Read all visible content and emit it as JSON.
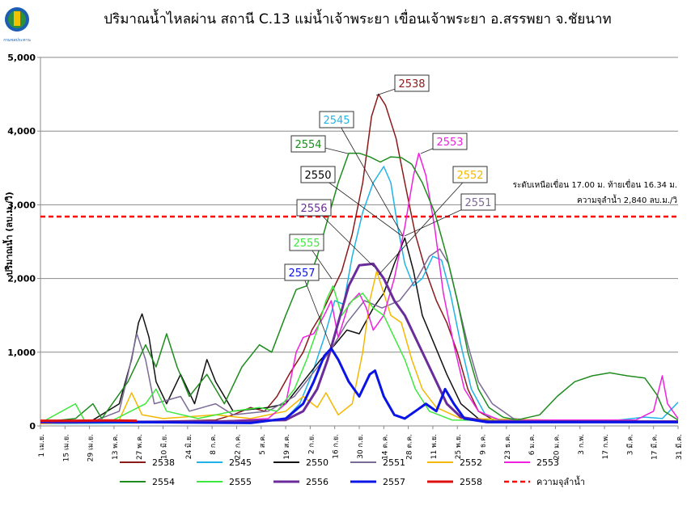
{
  "logo_text": "กรมชลประทาน",
  "chart_data": {
    "type": "line",
    "title": "ปริมาณน้ำไหลผ่าน สถานี C.13 แม่น้ำเจ้าพระยา เขื่อนเจ้าพระยา อ.สรรพยา จ.ชัยนาท",
    "ylabel": "ปริมาณน้ำ (ลบ.ม./วิ)",
    "xlabel": "",
    "ylim": [
      0,
      5000
    ],
    "yticks": [
      0,
      1000,
      2000,
      3000,
      4000,
      5000
    ],
    "ytick_labels": [
      "0",
      "1,000",
      "2,000",
      "3,000",
      "4,000",
      "5,000"
    ],
    "xlim_days": [
      0,
      364
    ],
    "xtick_labels": [
      "1 เม.ย.",
      "15 เม.ย.",
      "29 เม.ย.",
      "13 พ.ค.",
      "27 พ.ค.",
      "10 มิ.ย.",
      "24 มิ.ย.",
      "8 ก.ค.",
      "22 ก.ค.",
      "5 ส.ค.",
      "19 ส.ค.",
      "2 ก.ย.",
      "16 ก.ย.",
      "30 ก.ย.",
      "14 ต.ค.",
      "28 ต.ค.",
      "11 พ.ย.",
      "25 พ.ย.",
      "9 ธ.ค.",
      "23 ธ.ค.",
      "6 ม.ค.",
      "20 ม.ค.",
      "3 ก.พ.",
      "17 ก.พ.",
      "3 มี.ค.",
      "17 มี.ค.",
      "31 มี.ค."
    ],
    "xtick_interval_days": 14,
    "grid": true,
    "legend_placement": "bottom",
    "capacity": {
      "name": "ความจุลำน้ำ",
      "value": 2840,
      "color": "#FF0000"
    },
    "annotation": {
      "line1": "ระดับเหนือเขื่อน  17.00 ม. ท้ายเขื่อน 16.34 ม.",
      "line2": "ความจุลำน้ำ 2,840 ลบ.ม./วิ"
    },
    "series": [
      {
        "name": "2538",
        "color": "#8B1A1A",
        "width": 1.5,
        "points": [
          [
            0,
            50
          ],
          [
            60,
            60
          ],
          [
            100,
            80
          ],
          [
            110,
            150
          ],
          [
            120,
            250
          ],
          [
            128,
            200
          ],
          [
            135,
            400
          ],
          [
            142,
            700
          ],
          [
            150,
            1000
          ],
          [
            155,
            1300
          ],
          [
            160,
            1500
          ],
          [
            166,
            1800
          ],
          [
            172,
            2100
          ],
          [
            178,
            2600
          ],
          [
            184,
            3300
          ],
          [
            189,
            4200
          ],
          [
            193,
            4500
          ],
          [
            197,
            4350
          ],
          [
            203,
            3900
          ],
          [
            208,
            3300
          ],
          [
            214,
            2600
          ],
          [
            220,
            2100
          ],
          [
            226,
            1700
          ],
          [
            232,
            1400
          ],
          [
            238,
            1000
          ],
          [
            244,
            500
          ],
          [
            250,
            200
          ],
          [
            260,
            60
          ],
          [
            364,
            60
          ]
        ]
      },
      {
        "name": "2545",
        "color": "#1EB4E8",
        "width": 1.5,
        "points": [
          [
            0,
            30
          ],
          [
            120,
            50
          ],
          [
            140,
            100
          ],
          [
            148,
            300
          ],
          [
            155,
            700
          ],
          [
            162,
            1200
          ],
          [
            168,
            1700
          ],
          [
            173,
            1650
          ],
          [
            178,
            2300
          ],
          [
            184,
            2900
          ],
          [
            190,
            3300
          ],
          [
            196,
            3520
          ],
          [
            200,
            3300
          ],
          [
            204,
            2700
          ],
          [
            208,
            2200
          ],
          [
            213,
            1900
          ],
          [
            218,
            2000
          ],
          [
            224,
            2300
          ],
          [
            229,
            2250
          ],
          [
            234,
            1800
          ],
          [
            240,
            1100
          ],
          [
            246,
            500
          ],
          [
            254,
            150
          ],
          [
            265,
            60
          ],
          [
            330,
            80
          ],
          [
            345,
            120
          ],
          [
            355,
            100
          ],
          [
            364,
            320
          ]
        ]
      },
      {
        "name": "2550",
        "color": "#111111",
        "width": 1.5,
        "points": [
          [
            0,
            60
          ],
          [
            30,
            80
          ],
          [
            45,
            300
          ],
          [
            52,
            900
          ],
          [
            56,
            1400
          ],
          [
            58,
            1520
          ],
          [
            62,
            1200
          ],
          [
            66,
            600
          ],
          [
            72,
            300
          ],
          [
            80,
            700
          ],
          [
            88,
            300
          ],
          [
            95,
            900
          ],
          [
            100,
            600
          ],
          [
            110,
            200
          ],
          [
            130,
            250
          ],
          [
            140,
            300
          ],
          [
            150,
            600
          ],
          [
            160,
            900
          ],
          [
            168,
            1100
          ],
          [
            175,
            1300
          ],
          [
            182,
            1250
          ],
          [
            190,
            1600
          ],
          [
            196,
            1800
          ],
          [
            202,
            2200
          ],
          [
            208,
            2550
          ],
          [
            213,
            2100
          ],
          [
            218,
            1500
          ],
          [
            225,
            1100
          ],
          [
            232,
            700
          ],
          [
            240,
            300
          ],
          [
            250,
            100
          ],
          [
            260,
            60
          ],
          [
            364,
            60
          ]
        ]
      },
      {
        "name": "2551",
        "color": "#7B6A96",
        "width": 1.5,
        "points": [
          [
            0,
            40
          ],
          [
            30,
            60
          ],
          [
            45,
            200
          ],
          [
            50,
            700
          ],
          [
            55,
            1250
          ],
          [
            60,
            900
          ],
          [
            65,
            300
          ],
          [
            80,
            400
          ],
          [
            85,
            200
          ],
          [
            100,
            300
          ],
          [
            110,
            150
          ],
          [
            130,
            200
          ],
          [
            145,
            400
          ],
          [
            155,
            700
          ],
          [
            165,
            1000
          ],
          [
            175,
            1400
          ],
          [
            185,
            1700
          ],
          [
            195,
            1600
          ],
          [
            205,
            1700
          ],
          [
            215,
            2000
          ],
          [
            222,
            2300
          ],
          [
            228,
            2400
          ],
          [
            233,
            2200
          ],
          [
            238,
            1700
          ],
          [
            244,
            1100
          ],
          [
            250,
            600
          ],
          [
            258,
            300
          ],
          [
            270,
            100
          ],
          [
            290,
            60
          ],
          [
            364,
            60
          ]
        ]
      },
      {
        "name": "2552",
        "color": "#F5B800",
        "width": 1.5,
        "points": [
          [
            0,
            30
          ],
          [
            45,
            80
          ],
          [
            52,
            450
          ],
          [
            58,
            150
          ],
          [
            70,
            100
          ],
          [
            100,
            150
          ],
          [
            120,
            100
          ],
          [
            140,
            200
          ],
          [
            150,
            400
          ],
          [
            158,
            250
          ],
          [
            163,
            450
          ],
          [
            170,
            150
          ],
          [
            178,
            300
          ],
          [
            184,
            1000
          ],
          [
            188,
            1700
          ],
          [
            192,
            2100
          ],
          [
            196,
            1800
          ],
          [
            200,
            1500
          ],
          [
            206,
            1400
          ],
          [
            212,
            900
          ],
          [
            218,
            500
          ],
          [
            226,
            250
          ],
          [
            240,
            100
          ],
          [
            364,
            50
          ]
        ]
      },
      {
        "name": "2553",
        "color": "#F020E0",
        "width": 1.5,
        "points": [
          [
            0,
            40
          ],
          [
            100,
            60
          ],
          [
            130,
            100
          ],
          [
            140,
            300
          ],
          [
            146,
            1000
          ],
          [
            150,
            1200
          ],
          [
            156,
            1250
          ],
          [
            162,
            1500
          ],
          [
            166,
            1700
          ],
          [
            170,
            1200
          ],
          [
            176,
            1650
          ],
          [
            182,
            1800
          ],
          [
            186,
            1600
          ],
          [
            190,
            1300
          ],
          [
            196,
            1500
          ],
          [
            202,
            2000
          ],
          [
            208,
            2700
          ],
          [
            213,
            3400
          ],
          [
            216,
            3700
          ],
          [
            220,
            3400
          ],
          [
            225,
            2700
          ],
          [
            230,
            1800
          ],
          [
            236,
            1100
          ],
          [
            242,
            500
          ],
          [
            250,
            200
          ],
          [
            262,
            80
          ],
          [
            340,
            80
          ],
          [
            350,
            200
          ],
          [
            355,
            680
          ],
          [
            358,
            300
          ],
          [
            364,
            100
          ]
        ]
      },
      {
        "name": "2554",
        "color": "#1E8C1E",
        "width": 1.5,
        "points": [
          [
            0,
            50
          ],
          [
            20,
            100
          ],
          [
            30,
            300
          ],
          [
            35,
            100
          ],
          [
            50,
            600
          ],
          [
            60,
            1100
          ],
          [
            66,
            800
          ],
          [
            72,
            1250
          ],
          [
            78,
            800
          ],
          [
            85,
            400
          ],
          [
            95,
            700
          ],
          [
            105,
            300
          ],
          [
            115,
            800
          ],
          [
            125,
            1100
          ],
          [
            132,
            1000
          ],
          [
            140,
            1500
          ],
          [
            146,
            1850
          ],
          [
            152,
            1900
          ],
          [
            158,
            2300
          ],
          [
            164,
            2800
          ],
          [
            170,
            3300
          ],
          [
            176,
            3700
          ],
          [
            182,
            3700
          ],
          [
            188,
            3650
          ],
          [
            194,
            3580
          ],
          [
            200,
            3650
          ],
          [
            206,
            3640
          ],
          [
            212,
            3550
          ],
          [
            218,
            3300
          ],
          [
            225,
            2900
          ],
          [
            232,
            2300
          ],
          [
            238,
            1700
          ],
          [
            244,
            1000
          ],
          [
            250,
            500
          ],
          [
            256,
            250
          ],
          [
            264,
            120
          ],
          [
            272,
            80
          ],
          [
            285,
            150
          ],
          [
            295,
            400
          ],
          [
            305,
            600
          ],
          [
            315,
            680
          ],
          [
            325,
            720
          ],
          [
            335,
            680
          ],
          [
            345,
            650
          ],
          [
            352,
            420
          ],
          [
            356,
            200
          ],
          [
            364,
            80
          ]
        ]
      },
      {
        "name": "2555",
        "color": "#3EE83E",
        "width": 1.5,
        "points": [
          [
            0,
            40
          ],
          [
            20,
            300
          ],
          [
            25,
            80
          ],
          [
            40,
            60
          ],
          [
            60,
            300
          ],
          [
            66,
            500
          ],
          [
            72,
            200
          ],
          [
            90,
            100
          ],
          [
            110,
            200
          ],
          [
            125,
            250
          ],
          [
            135,
            200
          ],
          [
            145,
            500
          ],
          [
            152,
            900
          ],
          [
            158,
            1300
          ],
          [
            163,
            1700
          ],
          [
            167,
            1900
          ],
          [
            172,
            1500
          ],
          [
            178,
            1700
          ],
          [
            184,
            1800
          ],
          [
            190,
            1600
          ],
          [
            196,
            1500
          ],
          [
            202,
            1200
          ],
          [
            208,
            900
          ],
          [
            214,
            500
          ],
          [
            222,
            200
          ],
          [
            235,
            80
          ],
          [
            364,
            50
          ]
        ]
      },
      {
        "name": "2556",
        "color": "#6A2C9A",
        "width": 3,
        "points": [
          [
            0,
            50
          ],
          [
            100,
            60
          ],
          [
            140,
            80
          ],
          [
            150,
            200
          ],
          [
            158,
            500
          ],
          [
            164,
            900
          ],
          [
            170,
            1400
          ],
          [
            176,
            1900
          ],
          [
            182,
            2180
          ],
          [
            190,
            2200
          ],
          [
            196,
            2000
          ],
          [
            202,
            1700
          ],
          [
            208,
            1500
          ],
          [
            214,
            1200
          ],
          [
            220,
            900
          ],
          [
            226,
            600
          ],
          [
            232,
            300
          ],
          [
            240,
            120
          ],
          [
            255,
            60
          ],
          [
            364,
            60
          ]
        ]
      },
      {
        "name": "2557",
        "color": "#0A14E6",
        "width": 3,
        "points": [
          [
            0,
            60
          ],
          [
            60,
            50
          ],
          [
            120,
            40
          ],
          [
            140,
            100
          ],
          [
            150,
            300
          ],
          [
            156,
            600
          ],
          [
            162,
            950
          ],
          [
            166,
            1050
          ],
          [
            170,
            900
          ],
          [
            176,
            600
          ],
          [
            182,
            400
          ],
          [
            188,
            700
          ],
          [
            191,
            750
          ],
          [
            196,
            400
          ],
          [
            202,
            150
          ],
          [
            208,
            100
          ],
          [
            214,
            200
          ],
          [
            220,
            300
          ],
          [
            226,
            200
          ],
          [
            231,
            500
          ],
          [
            236,
            300
          ],
          [
            242,
            100
          ],
          [
            255,
            50
          ],
          [
            364,
            50
          ]
        ]
      },
      {
        "name": "2558",
        "color": "#E01010",
        "width": 3,
        "points": [
          [
            0,
            70
          ],
          [
            20,
            70
          ],
          [
            40,
            75
          ],
          [
            55,
            70
          ]
        ]
      }
    ]
  }
}
